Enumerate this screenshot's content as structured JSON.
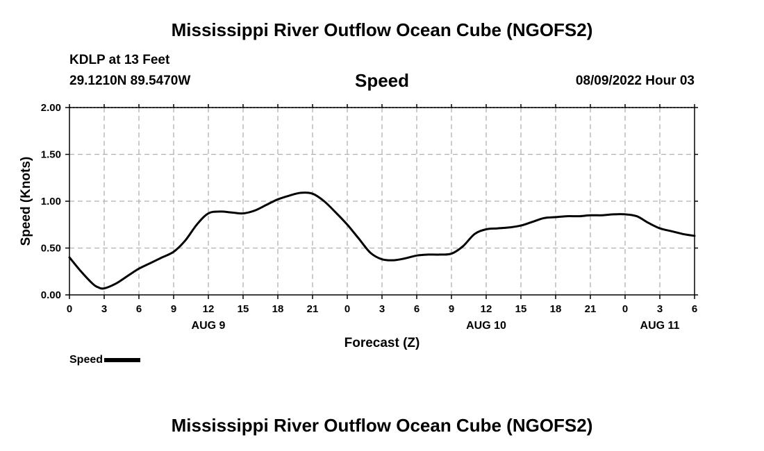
{
  "header": {
    "title": "Mississippi River Outflow Ocean Cube (NGOFS2)",
    "station": "KDLP at 13 Feet",
    "coords": "29.1210N  89.5470W",
    "parameter": "Speed",
    "datetime": "08/09/2022 Hour 03"
  },
  "footer": {
    "title": "Mississippi River Outflow Ocean Cube (NGOFS2)"
  },
  "legend": {
    "label": "Speed"
  },
  "colors": {
    "line": "#000000",
    "grid": "#b0b0b0"
  },
  "chart_data": {
    "type": "line",
    "title": "Speed",
    "xlabel": "Forecast (Z)",
    "ylabel": "Speed (Knots)",
    "xlim": [
      0,
      54
    ],
    "ylim": [
      0,
      2.0
    ],
    "grid": true,
    "legend_position": "bottom-left",
    "x_ticks": [
      {
        "x": 0,
        "label": "0"
      },
      {
        "x": 3,
        "label": "3"
      },
      {
        "x": 6,
        "label": "6"
      },
      {
        "x": 9,
        "label": "9"
      },
      {
        "x": 12,
        "label": "12"
      },
      {
        "x": 15,
        "label": "15"
      },
      {
        "x": 18,
        "label": "18"
      },
      {
        "x": 21,
        "label": "21"
      },
      {
        "x": 24,
        "label": "0"
      },
      {
        "x": 27,
        "label": "3"
      },
      {
        "x": 30,
        "label": "6"
      },
      {
        "x": 33,
        "label": "9"
      },
      {
        "x": 36,
        "label": "12"
      },
      {
        "x": 39,
        "label": "15"
      },
      {
        "x": 42,
        "label": "18"
      },
      {
        "x": 45,
        "label": "21"
      },
      {
        "x": 48,
        "label": "0"
      },
      {
        "x": 51,
        "label": "3"
      },
      {
        "x": 54,
        "label": "6"
      }
    ],
    "y_ticks": [
      {
        "y": 0,
        "label": "0.00"
      },
      {
        "y": 0.5,
        "label": "0.50"
      },
      {
        "y": 1.0,
        "label": "1.00"
      },
      {
        "y": 1.5,
        "label": "1.50"
      },
      {
        "y": 2.0,
        "label": "2.00"
      }
    ],
    "day_labels": [
      {
        "x": 12,
        "label": "AUG 9"
      },
      {
        "x": 36,
        "label": "AUG 10"
      },
      {
        "x": 51,
        "label": "AUG 11"
      }
    ],
    "series": [
      {
        "name": "Speed",
        "x": [
          0,
          1,
          2,
          2.5,
          3,
          4,
          5,
          6,
          7,
          8,
          9,
          10,
          11,
          12,
          13,
          14,
          15,
          16,
          17,
          18,
          19,
          20,
          21,
          22,
          23,
          24,
          25,
          26,
          27,
          28,
          29,
          30,
          31,
          32,
          33,
          34,
          35,
          36,
          37,
          38,
          39,
          40,
          41,
          42,
          43,
          44,
          45,
          46,
          47,
          48,
          49,
          50,
          51,
          52,
          53,
          54
        ],
        "y": [
          0.4,
          0.25,
          0.12,
          0.08,
          0.07,
          0.12,
          0.2,
          0.28,
          0.34,
          0.4,
          0.46,
          0.58,
          0.75,
          0.87,
          0.89,
          0.88,
          0.87,
          0.9,
          0.96,
          1.02,
          1.06,
          1.09,
          1.08,
          1.0,
          0.88,
          0.75,
          0.6,
          0.45,
          0.38,
          0.37,
          0.39,
          0.42,
          0.43,
          0.43,
          0.44,
          0.52,
          0.65,
          0.7,
          0.71,
          0.72,
          0.74,
          0.78,
          0.82,
          0.83,
          0.84,
          0.84,
          0.85,
          0.85,
          0.86,
          0.86,
          0.84,
          0.77,
          0.71,
          0.68,
          0.65,
          0.63
        ]
      }
    ]
  }
}
